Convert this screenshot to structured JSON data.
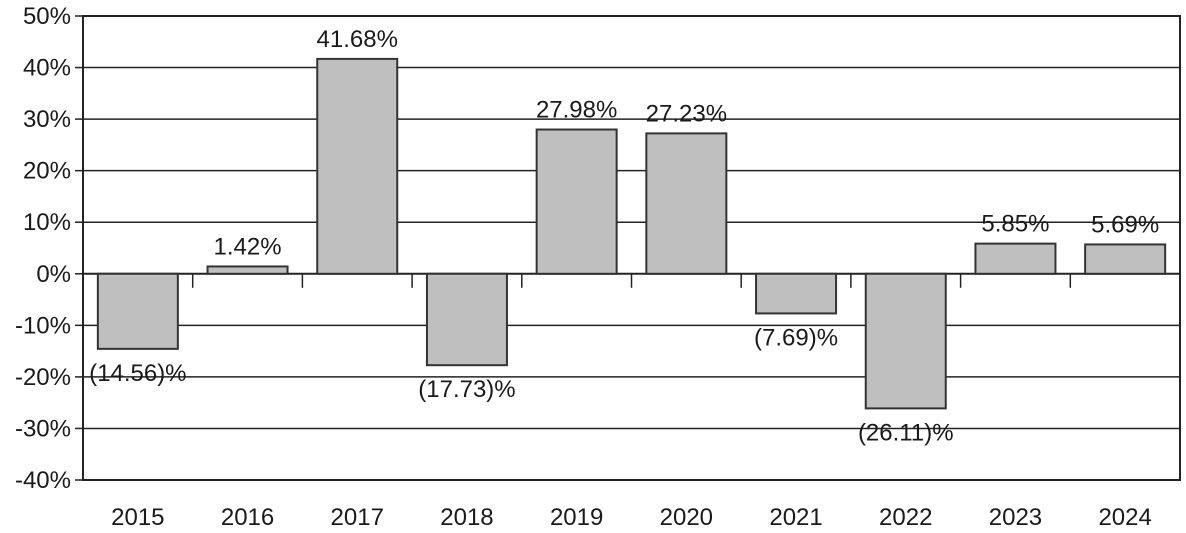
{
  "chart_data": {
    "type": "bar",
    "categories": [
      "2015",
      "2016",
      "2017",
      "2018",
      "2019",
      "2020",
      "2021",
      "2022",
      "2023",
      "2024"
    ],
    "values": [
      -14.56,
      1.42,
      41.68,
      -17.73,
      27.98,
      27.23,
      -7.69,
      -26.11,
      5.85,
      5.69
    ],
    "value_labels": [
      "(14.56)%",
      "1.42%",
      "41.68%",
      "(17.73)%",
      "27.98%",
      "27.23%",
      "(7.69)%",
      "(26.11)%",
      "5.85%",
      "5.69%"
    ],
    "y_ticks": [
      50,
      40,
      30,
      20,
      10,
      0,
      -10,
      -20,
      -30,
      -40
    ],
    "y_tick_labels": [
      "50%",
      "40%",
      "30%",
      "20%",
      "10%",
      "0%",
      "-10%",
      "-20%",
      "-30%",
      "-40%"
    ],
    "ylim": [
      -40,
      50
    ],
    "grid": true,
    "title": "",
    "xlabel": "",
    "ylabel": "",
    "colors": {
      "bar_fill": "#bfbfbf",
      "bar_stroke": "#333333",
      "grid": "#222222",
      "axis": "#222222"
    }
  }
}
